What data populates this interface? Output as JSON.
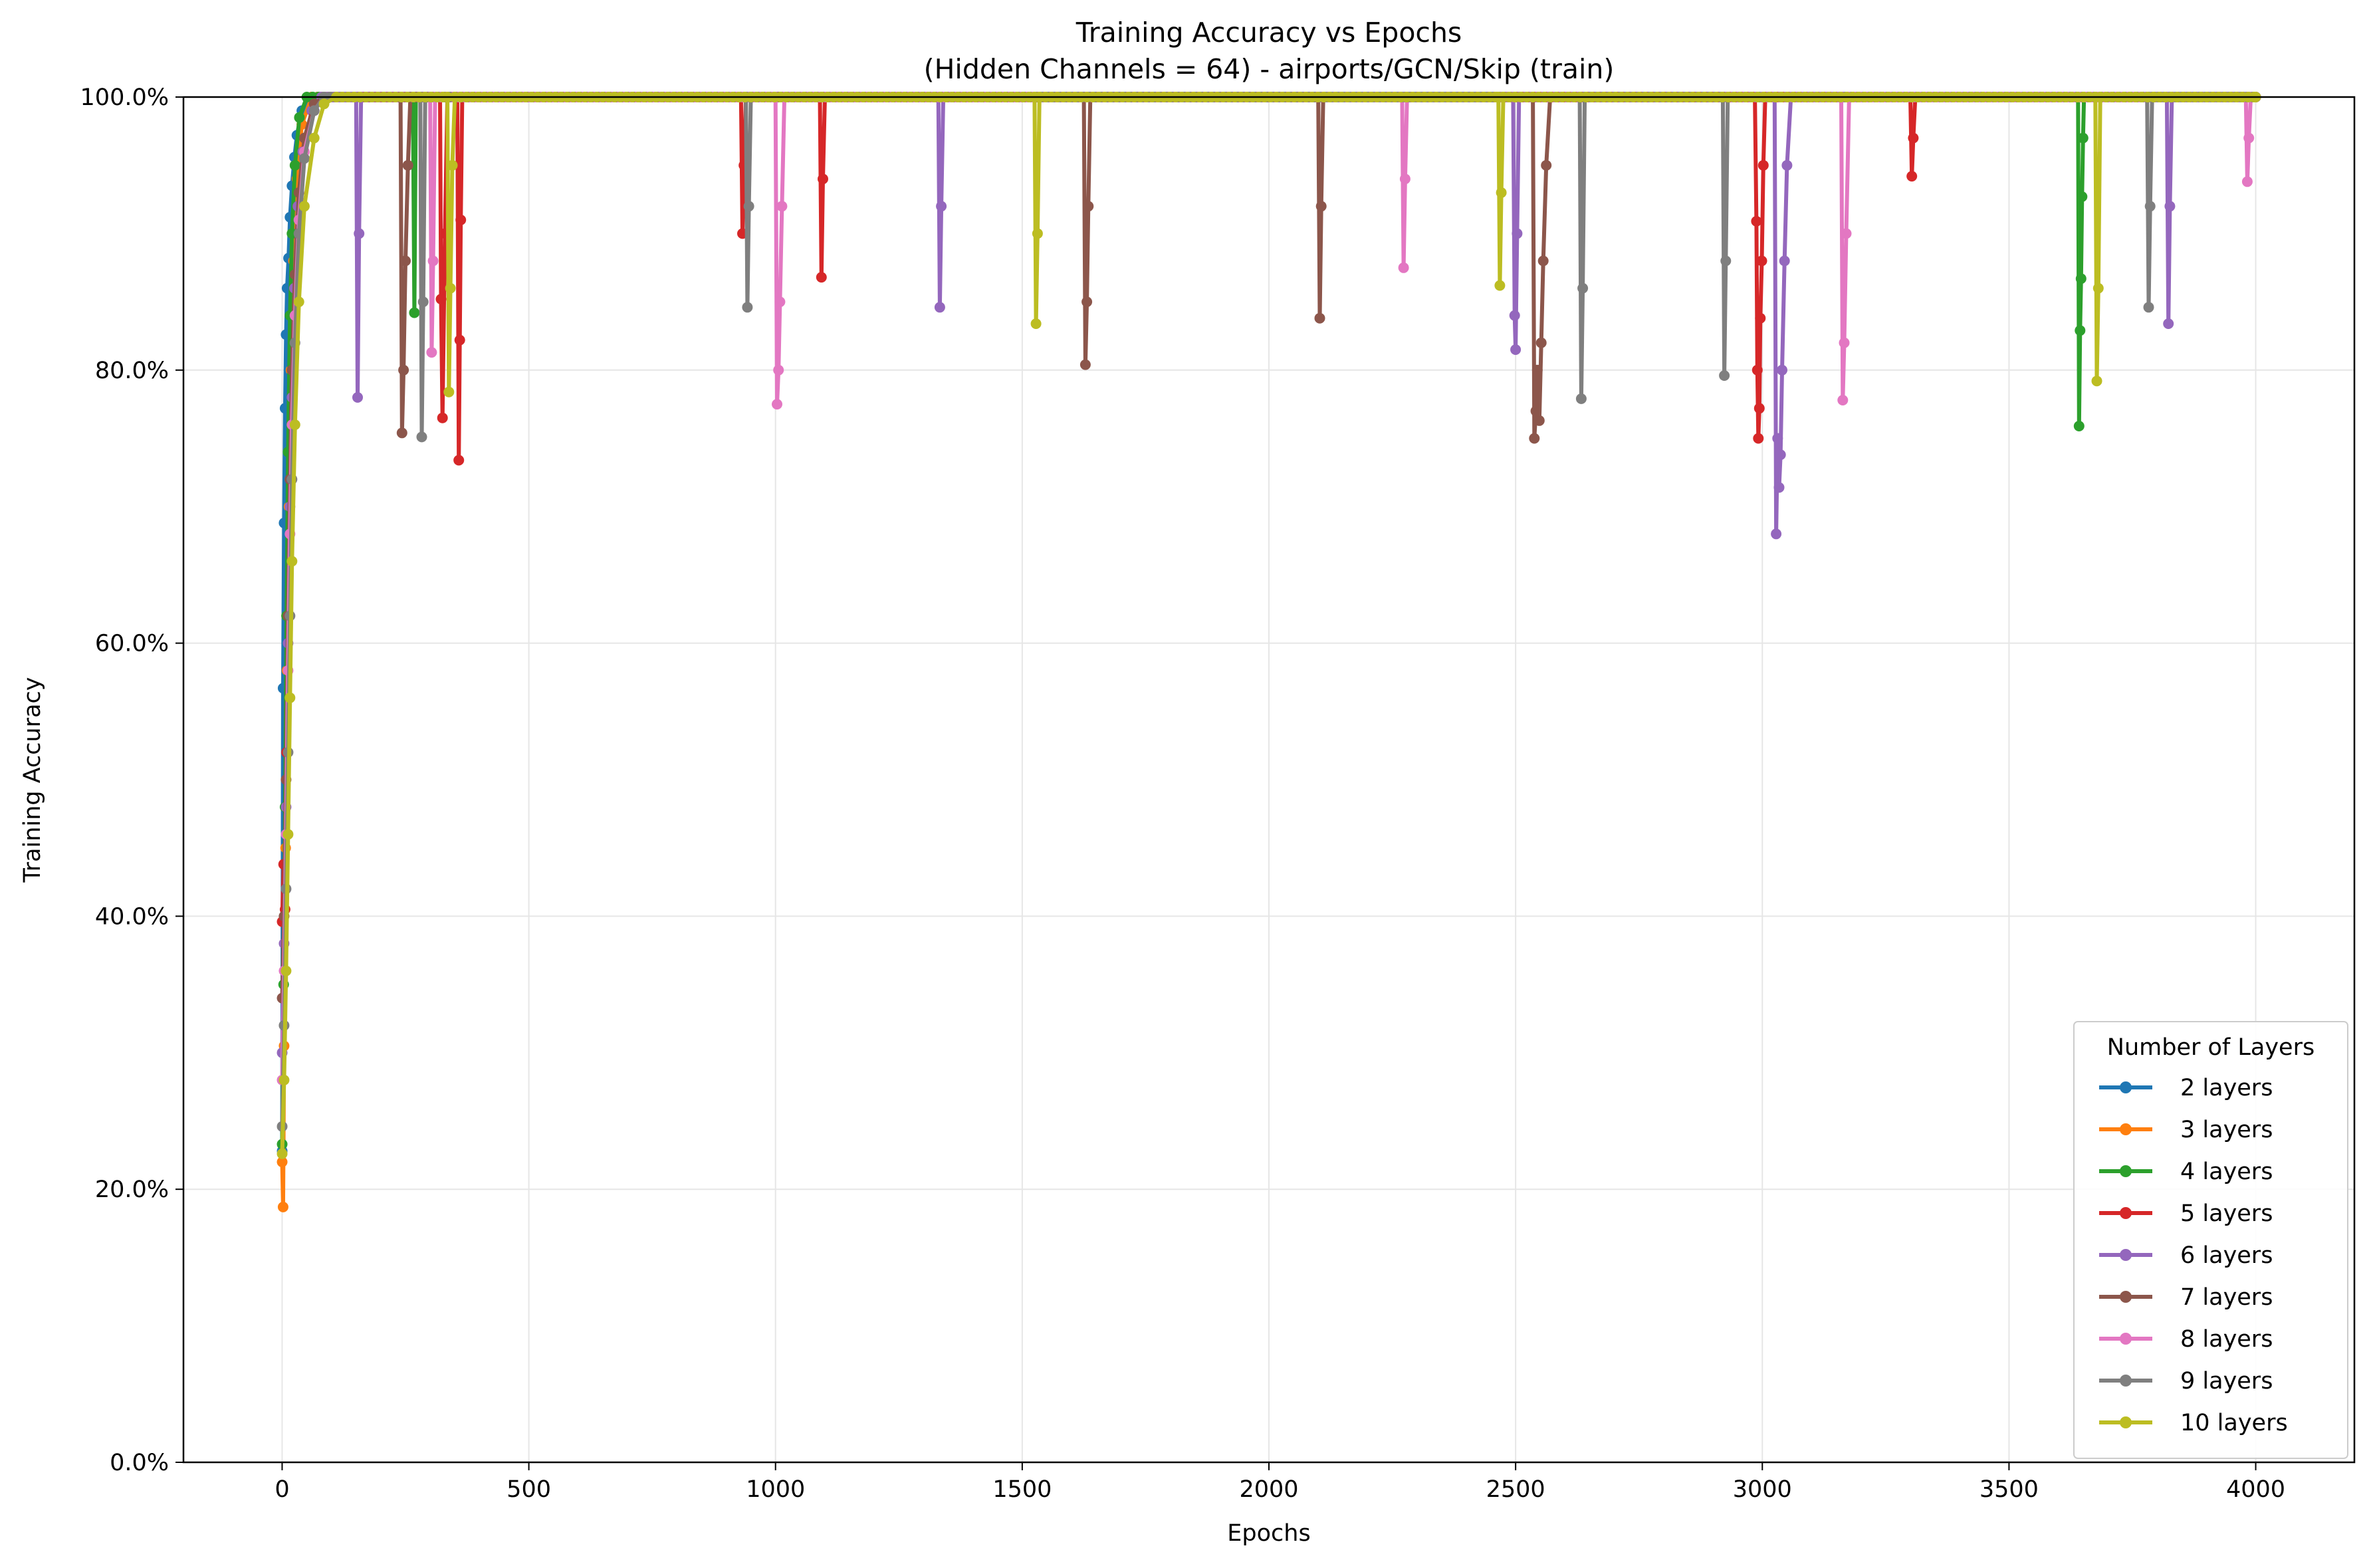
{
  "chart_data": {
    "type": "line",
    "title": "Training Accuracy vs Epochs",
    "subtitle": "(Hidden Channels = 64) - airports/GCN/Skip (train)",
    "xlabel": "Epochs",
    "ylabel": "Training Accuracy",
    "xlim": [
      -200,
      4200
    ],
    "ylim": [
      0,
      100
    ],
    "x_ticks": [
      0,
      500,
      1000,
      1500,
      2000,
      2500,
      3000,
      3500,
      4000
    ],
    "y_ticks": [
      0,
      20,
      40,
      60,
      80,
      100
    ],
    "y_tick_labels": [
      "0.0%",
      "20.0%",
      "40.0%",
      "60.0%",
      "80.0%",
      "100.0%"
    ],
    "grid": true,
    "legend": {
      "title": "Number of Layers",
      "placement": "lower-right"
    },
    "epochs": 4000,
    "series": [
      {
        "name": "2 layers",
        "color": "#1f77b4",
        "points": [
          [
            0,
            22.8
          ],
          [
            2,
            56.7
          ],
          [
            4,
            68.8
          ],
          [
            6,
            77.2
          ],
          [
            8,
            82.6
          ],
          [
            10,
            86.0
          ],
          [
            13,
            88.2
          ],
          [
            16,
            91.2
          ],
          [
            20,
            93.5
          ],
          [
            25,
            95.6
          ],
          [
            30,
            97.2
          ],
          [
            40,
            99.0
          ],
          [
            60,
            100
          ],
          [
            4000,
            100
          ]
        ]
      },
      {
        "name": "3 layers",
        "color": "#ff7f0e",
        "points": [
          [
            0,
            22.0
          ],
          [
            2,
            18.7
          ],
          [
            4,
            30.5
          ],
          [
            7,
            45.0
          ],
          [
            10,
            58.0
          ],
          [
            14,
            70.0
          ],
          [
            18,
            80.0
          ],
          [
            23,
            88.0
          ],
          [
            30,
            94.0
          ],
          [
            40,
            98.0
          ],
          [
            60,
            100
          ],
          [
            4000,
            100
          ]
        ]
      },
      {
        "name": "4 layers",
        "color": "#2ca02c",
        "points": [
          [
            0,
            23.3
          ],
          [
            3,
            35.0
          ],
          [
            6,
            48.0
          ],
          [
            9,
            62.0
          ],
          [
            12,
            74.0
          ],
          [
            16,
            84.0
          ],
          [
            20,
            90.0
          ],
          [
            26,
            95.0
          ],
          [
            35,
            98.5
          ],
          [
            50,
            100
          ],
          [
            265,
            100
          ],
          [
            268,
            84.2
          ],
          [
            271,
            100
          ],
          [
            3640,
            100
          ],
          [
            3642,
            75.9
          ],
          [
            3644,
            82.9
          ],
          [
            3646,
            86.7
          ],
          [
            3648,
            92.7
          ],
          [
            3650,
            97.0
          ],
          [
            3652,
            100
          ],
          [
            4000,
            100
          ]
        ]
      },
      {
        "name": "5 layers",
        "color": "#d62728",
        "points": [
          [
            0,
            39.6
          ],
          [
            3,
            43.8
          ],
          [
            6,
            40.5
          ],
          [
            9,
            52.0
          ],
          [
            12,
            62.0
          ],
          [
            16,
            72.0
          ],
          [
            20,
            80.0
          ],
          [
            25,
            86.0
          ],
          [
            32,
            92.0
          ],
          [
            42,
            96.0
          ],
          [
            60,
            99.0
          ],
          [
            80,
            100
          ],
          [
            320,
            100
          ],
          [
            322,
            85.2
          ],
          [
            325,
            76.5
          ],
          [
            330,
            90.0
          ],
          [
            335,
            100
          ],
          [
            355,
            100
          ],
          [
            358,
            73.4
          ],
          [
            360,
            82.2
          ],
          [
            362,
            91.0
          ],
          [
            365,
            100
          ],
          [
            930,
            100
          ],
          [
            933,
            90.0
          ],
          [
            936,
            95.0
          ],
          [
            940,
            100
          ],
          [
            1090,
            100
          ],
          [
            1093,
            86.8
          ],
          [
            1096,
            94.0
          ],
          [
            1100,
            100
          ],
          [
            2985,
            100
          ],
          [
            2988,
            90.9
          ],
          [
            2990,
            80.0
          ],
          [
            2992,
            75.0
          ],
          [
            2994,
            77.2
          ],
          [
            2996,
            83.8
          ],
          [
            2999,
            88.0
          ],
          [
            3002,
            95.0
          ],
          [
            3006,
            100
          ],
          [
            3300,
            100
          ],
          [
            3303,
            94.2
          ],
          [
            3306,
            97.0
          ],
          [
            3310,
            100
          ],
          [
            4000,
            100
          ]
        ]
      },
      {
        "name": "6 layers",
        "color": "#9467bd",
        "points": [
          [
            0,
            30.0
          ],
          [
            4,
            38.0
          ],
          [
            8,
            48.0
          ],
          [
            12,
            60.0
          ],
          [
            16,
            70.0
          ],
          [
            20,
            78.0
          ],
          [
            25,
            86.0
          ],
          [
            32,
            92.0
          ],
          [
            42,
            96.0
          ],
          [
            60,
            99.0
          ],
          [
            80,
            100
          ],
          [
            150,
            100
          ],
          [
            153,
            78.0
          ],
          [
            156,
            90.0
          ],
          [
            160,
            100
          ],
          [
            1330,
            100
          ],
          [
            1333,
            84.6
          ],
          [
            1336,
            92.0
          ],
          [
            1340,
            100
          ],
          [
            2495,
            100
          ],
          [
            2498,
            84.0
          ],
          [
            2500,
            81.5
          ],
          [
            2503,
            90.0
          ],
          [
            2507,
            100
          ],
          [
            3025,
            100
          ],
          [
            3028,
            68.0
          ],
          [
            3031,
            75.0
          ],
          [
            3034,
            71.4
          ],
          [
            3037,
            73.8
          ],
          [
            3040,
            80.0
          ],
          [
            3045,
            88.0
          ],
          [
            3050,
            95.0
          ],
          [
            3058,
            100
          ],
          [
            3820,
            100
          ],
          [
            3823,
            83.4
          ],
          [
            3826,
            92.0
          ],
          [
            3830,
            100
          ],
          [
            4000,
            100
          ]
        ]
      },
      {
        "name": "7 layers",
        "color": "#8c564b",
        "points": [
          [
            0,
            34.0
          ],
          [
            4,
            40.0
          ],
          [
            8,
            50.0
          ],
          [
            12,
            62.0
          ],
          [
            16,
            72.0
          ],
          [
            20,
            80.0
          ],
          [
            26,
            87.0
          ],
          [
            34,
            93.0
          ],
          [
            45,
            97.0
          ],
          [
            65,
            99.5
          ],
          [
            85,
            100
          ],
          [
            240,
            100
          ],
          [
            243,
            75.4
          ],
          [
            246,
            80.0
          ],
          [
            250,
            88.0
          ],
          [
            255,
            95.0
          ],
          [
            260,
            100
          ],
          [
            1625,
            100
          ],
          [
            1628,
            80.4
          ],
          [
            1631,
            85.0
          ],
          [
            1634,
            92.0
          ],
          [
            1638,
            100
          ],
          [
            2100,
            100
          ],
          [
            2103,
            83.8
          ],
          [
            2106,
            92.0
          ],
          [
            2110,
            100
          ],
          [
            2535,
            100
          ],
          [
            2538,
            75.0
          ],
          [
            2541,
            77.0
          ],
          [
            2544,
            80.0
          ],
          [
            2548,
            76.3
          ],
          [
            2552,
            82.0
          ],
          [
            2556,
            88.0
          ],
          [
            2562,
            95.0
          ],
          [
            2570,
            100
          ],
          [
            4000,
            100
          ]
        ]
      },
      {
        "name": "8 layers",
        "color": "#e377c2",
        "points": [
          [
            0,
            28.0
          ],
          [
            4,
            36.0
          ],
          [
            8,
            46.0
          ],
          [
            12,
            58.0
          ],
          [
            16,
            68.0
          ],
          [
            20,
            76.0
          ],
          [
            26,
            84.0
          ],
          [
            34,
            91.0
          ],
          [
            45,
            96.0
          ],
          [
            65,
            99.0
          ],
          [
            85,
            100
          ],
          [
            300,
            100
          ],
          [
            303,
            81.3
          ],
          [
            306,
            88.0
          ],
          [
            310,
            100
          ],
          [
            1000,
            100
          ],
          [
            1003,
            77.5
          ],
          [
            1006,
            80.0
          ],
          [
            1009,
            85.0
          ],
          [
            1013,
            92.0
          ],
          [
            1018,
            100
          ],
          [
            2270,
            100
          ],
          [
            2273,
            87.5
          ],
          [
            2276,
            94.0
          ],
          [
            2280,
            100
          ],
          [
            3160,
            100
          ],
          [
            3163,
            77.8
          ],
          [
            3166,
            82.0
          ],
          [
            3170,
            90.0
          ],
          [
            3176,
            100
          ],
          [
            3980,
            100
          ],
          [
            3983,
            93.8
          ],
          [
            3986,
            97.0
          ],
          [
            3990,
            100
          ],
          [
            4000,
            100
          ]
        ]
      },
      {
        "name": "9 layers",
        "color": "#7f7f7f",
        "points": [
          [
            0,
            24.6
          ],
          [
            4,
            32.0
          ],
          [
            8,
            42.0
          ],
          [
            12,
            52.0
          ],
          [
            16,
            62.0
          ],
          [
            20,
            72.0
          ],
          [
            26,
            82.0
          ],
          [
            34,
            90.0
          ],
          [
            45,
            95.5
          ],
          [
            65,
            99.0
          ],
          [
            85,
            100
          ],
          [
            280,
            100
          ],
          [
            283,
            75.1
          ],
          [
            286,
            85.0
          ],
          [
            290,
            100
          ],
          [
            940,
            100
          ],
          [
            943,
            84.6
          ],
          [
            946,
            92.0
          ],
          [
            950,
            100
          ],
          [
            2630,
            100
          ],
          [
            2633,
            77.9
          ],
          [
            2636,
            86.0
          ],
          [
            2640,
            100
          ],
          [
            2920,
            100
          ],
          [
            2923,
            79.6
          ],
          [
            2926,
            88.0
          ],
          [
            2930,
            100
          ],
          [
            3780,
            100
          ],
          [
            3783,
            84.6
          ],
          [
            3786,
            92.0
          ],
          [
            3790,
            100
          ],
          [
            4000,
            100
          ]
        ]
      },
      {
        "name": "10 layers",
        "color": "#bcbd22",
        "points": [
          [
            0,
            22.6
          ],
          [
            4,
            28.0
          ],
          [
            8,
            36.0
          ],
          [
            12,
            46.0
          ],
          [
            16,
            56.0
          ],
          [
            20,
            66.0
          ],
          [
            26,
            76.0
          ],
          [
            34,
            85.0
          ],
          [
            45,
            92.0
          ],
          [
            65,
            97.0
          ],
          [
            85,
            99.5
          ],
          [
            110,
            100
          ],
          [
            335,
            100
          ],
          [
            338,
            78.4
          ],
          [
            341,
            86.0
          ],
          [
            345,
            95.0
          ],
          [
            350,
            100
          ],
          [
            1525,
            100
          ],
          [
            1528,
            83.4
          ],
          [
            1531,
            90.0
          ],
          [
            1535,
            100
          ],
          [
            2465,
            100
          ],
          [
            2468,
            86.2
          ],
          [
            2471,
            93.0
          ],
          [
            2475,
            100
          ],
          [
            3675,
            100
          ],
          [
            3678,
            79.2
          ],
          [
            3681,
            86.0
          ],
          [
            3685,
            100
          ],
          [
            4000,
            100
          ]
        ]
      }
    ]
  }
}
